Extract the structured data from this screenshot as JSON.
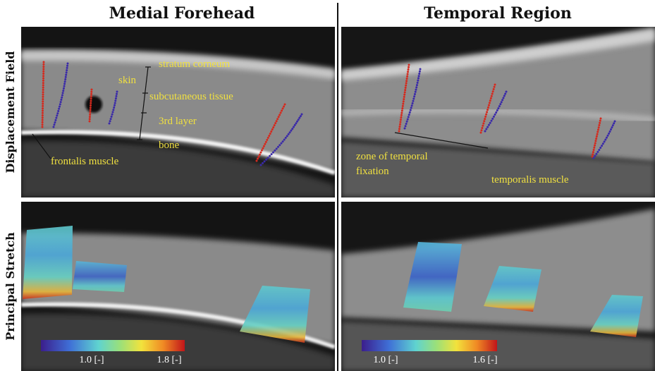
{
  "columns": [
    {
      "title": "Medial Forehead"
    },
    {
      "title": "Temporal Region"
    }
  ],
  "rows": [
    {
      "label": "Displacement Field"
    },
    {
      "label": "Principal Stretch"
    }
  ],
  "annotations": {
    "medial": [
      "stratum corneum",
      "skin",
      "subcutaneous tissue",
      "3rd layer",
      "bone",
      "frontalis muscle"
    ],
    "temporal": [
      "zone of temporal",
      "fixation",
      "temporalis muscle"
    ]
  },
  "colorbars": [
    {
      "min_label": "1.0 [-]",
      "max_label": "1.8 [-]"
    },
    {
      "min_label": "1.0 [-]",
      "max_label": "1.6 [-]"
    }
  ]
}
